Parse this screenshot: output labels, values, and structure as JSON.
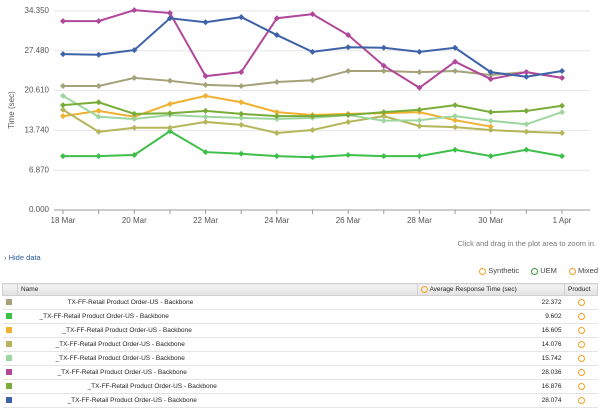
{
  "chart_data": {
    "type": "line",
    "y_label": "Time (sec)",
    "categories": [
      "18 Mar",
      null,
      "20 Mar",
      null,
      "22 Mar",
      null,
      "24 Mar",
      null,
      "26 Mar",
      null,
      "28 Mar",
      null,
      "30 Mar",
      null,
      "1 Apr"
    ],
    "ylim": [
      0,
      34.35
    ],
    "yticks": [
      {
        "value": 0,
        "label": "0.000"
      },
      {
        "value": 6.87,
        "label": "6.870"
      },
      {
        "value": 13.74,
        "label": "13.740"
      },
      {
        "value": 20.61,
        "label": "20.610"
      },
      {
        "value": 27.48,
        "label": "27.480"
      },
      {
        "value": 34.35,
        "label": "34.350"
      }
    ],
    "grid": true,
    "series": [
      {
        "color": "#a3a27a",
        "values": [
          21.4,
          21.4,
          22.8,
          22.3,
          21.6,
          21.4,
          22.1,
          22.4,
          24.0,
          24.0,
          23.8,
          24.0,
          23.3,
          23.8,
          22.8
        ]
      },
      {
        "color": "#3dbf4a",
        "values": [
          9.3,
          9.3,
          9.5,
          13.6,
          10.0,
          9.7,
          9.3,
          9.1,
          9.5,
          9.3,
          9.3,
          10.4,
          9.3,
          10.4,
          9.3
        ]
      },
      {
        "color": "#f0b030",
        "values": [
          16.2,
          17.1,
          16.1,
          18.3,
          19.7,
          18.6,
          16.9,
          16.4,
          16.6,
          16.7,
          16.9,
          15.5,
          14.4,
          null,
          null
        ]
      },
      {
        "color": "#b5b55a",
        "values": [
          17.3,
          13.5,
          14.2,
          14.2,
          15.2,
          14.7,
          13.3,
          13.8,
          15.2,
          16.2,
          14.5,
          14.3,
          13.8,
          13.5,
          13.3
        ]
      },
      {
        "color": "#9fd6a0",
        "values": [
          19.7,
          16.1,
          15.7,
          16.4,
          16.1,
          15.9,
          15.7,
          15.9,
          16.4,
          15.4,
          15.5,
          16.2,
          15.4,
          14.8,
          16.9
        ]
      },
      {
        "color": "#b0479a",
        "values": [
          32.6,
          32.6,
          34.5,
          34.0,
          23.1,
          23.8,
          33.1,
          33.8,
          30.2,
          24.9,
          21.1,
          25.6,
          22.6,
          23.8,
          22.8
        ]
      },
      {
        "color": "#7aac3a",
        "values": [
          18.1,
          18.6,
          16.6,
          16.7,
          17.1,
          16.6,
          16.2,
          16.2,
          16.4,
          16.9,
          17.3,
          18.1,
          16.9,
          17.1,
          18.0
        ]
      },
      {
        "color": "#3d62a8",
        "values": [
          26.9,
          26.8,
          27.6,
          33.1,
          32.4,
          33.3,
          30.2,
          27.3,
          28.1,
          28.0,
          27.3,
          28.0,
          23.8,
          23.0,
          24.0
        ]
      }
    ]
  },
  "hint": "Click and drag in the plot area to zoom in.",
  "hide_data": "Hide data",
  "legend": [
    "Synthetic",
    "UEM",
    "Mixed"
  ],
  "table": {
    "columns": [
      "Name",
      "Average Response Time (sec)",
      "Product"
    ],
    "rows": [
      {
        "color": "#a3a27a",
        "name": "TX-FF-Retail Product Order-US - Backbone",
        "value": "22.372"
      },
      {
        "color": "#3dbf4a",
        "name": "_TX-FF-Retail Product Order-US - Backbone",
        "value": "9.602"
      },
      {
        "color": "#f0b030",
        "name": "_TX-FF-Retail Product Order-US - Backbone",
        "value": "16.605"
      },
      {
        "color": "#b5b55a",
        "name": "_TX-FF-Retail Product Order-US - Backbone",
        "value": "14.076"
      },
      {
        "color": "#9fd6a0",
        "name": "_TX-FF-Retail Product Order-US - Backbone",
        "value": "15.742"
      },
      {
        "color": "#b0479a",
        "name": "_TX-FF-Retail Product Order-US - Backbone",
        "value": "28.036"
      },
      {
        "color": "#7aac3a",
        "name": "_TX-FF-Retail Product Order-US - Backbone",
        "value": "16.876"
      },
      {
        "color": "#3d62a8",
        "name": "_TX-FF-Retail Product Order-US - Backbone",
        "value": "28.074"
      }
    ]
  }
}
